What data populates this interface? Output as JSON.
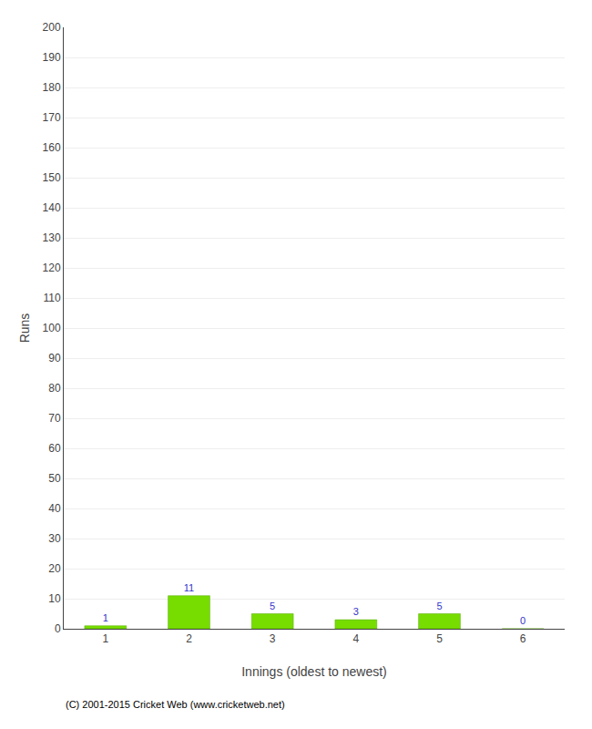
{
  "chart_data": {
    "type": "bar",
    "xlabel": "Innings (oldest to newest)",
    "ylabel": "Runs",
    "categories": [
      "1",
      "2",
      "3",
      "4",
      "5",
      "6"
    ],
    "values": [
      1,
      11,
      5,
      3,
      5,
      0
    ],
    "color": "#77dd00",
    "ylim": [
      0,
      200
    ],
    "yticks": [
      0,
      10,
      20,
      30,
      40,
      50,
      60,
      70,
      80,
      90,
      100,
      110,
      120,
      130,
      140,
      150,
      160,
      170,
      180,
      190,
      200
    ],
    "grid": true,
    "data_labels": true,
    "annotations": [
      "(C) 2001-2015 Cricket Web (www.cricketweb.net)"
    ]
  }
}
